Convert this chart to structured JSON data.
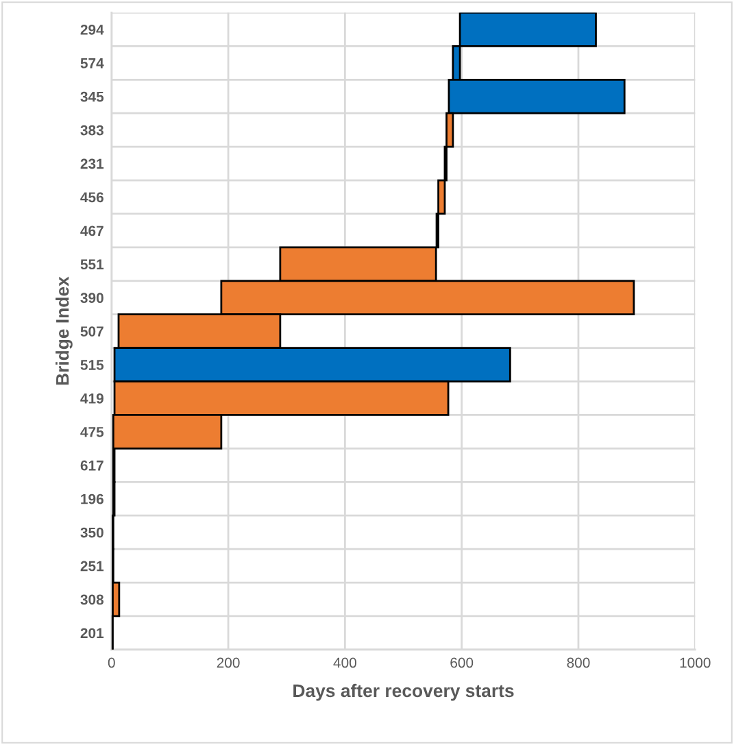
{
  "chart_data": {
    "type": "bar",
    "orientation": "horizontal",
    "xlabel": "Days after recovery starts",
    "ylabel": "Bridge Index",
    "categories": [
      "294",
      "574",
      "345",
      "383",
      "231",
      "456",
      "467",
      "551",
      "390",
      "507",
      "515",
      "419",
      "475",
      "617",
      "196",
      "350",
      "251",
      "308",
      "201"
    ],
    "base": [
      597,
      585,
      578,
      574,
      571,
      560,
      557,
      289,
      188,
      12,
      5,
      5,
      3,
      3,
      3,
      2,
      2,
      2,
      1
    ],
    "values": [
      233,
      12,
      301,
      11,
      3,
      11,
      3,
      267,
      707,
      277,
      678,
      572,
      185,
      2,
      2,
      1,
      1,
      11,
      1
    ],
    "colors": [
      "#0070c0",
      "#0070c0",
      "#0070c0",
      "#ed7d31",
      "#ed7d31",
      "#ed7d31",
      "#ed7d31",
      "#ed7d31",
      "#ed7d31",
      "#ed7d31",
      "#0070c0",
      "#ed7d31",
      "#ed7d31",
      "#ed7d31",
      "#ed7d31",
      "#ed7d31",
      "#ed7d31",
      "#ed7d31",
      "#ed7d31"
    ],
    "xlim": [
      0,
      1000
    ],
    "xticks": [
      0,
      200,
      400,
      600,
      800,
      1000
    ],
    "grid": true
  }
}
